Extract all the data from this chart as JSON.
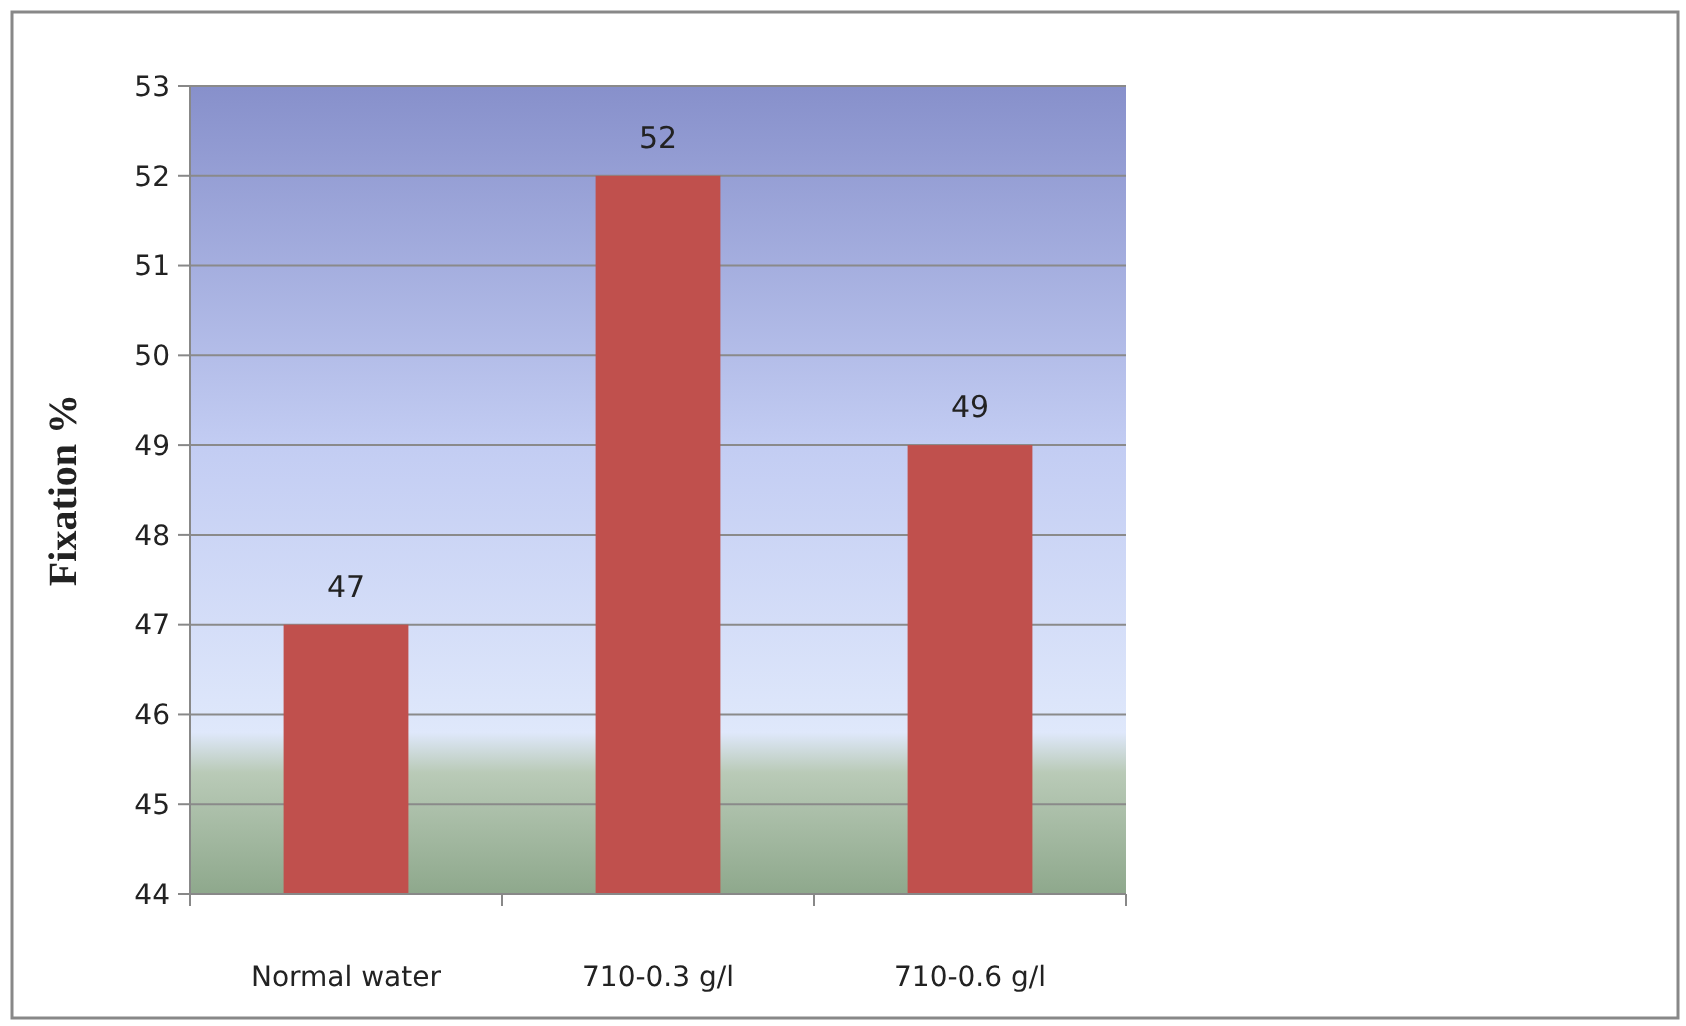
{
  "chart_data": {
    "type": "bar",
    "ylabel": "Fixation %",
    "categories": [
      "Normal water",
      "710-0.3 g/l",
      "710-0.6 g/l"
    ],
    "values": [
      47,
      52,
      49
    ],
    "color": "#c0504d",
    "ylim": [
      44,
      53
    ],
    "yticks": [
      44,
      45,
      46,
      47,
      48,
      49,
      50,
      51,
      52,
      53
    ],
    "grid": "y",
    "data_labels": true
  }
}
